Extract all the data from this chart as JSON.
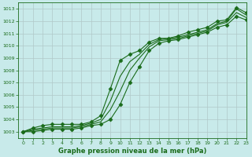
{
  "background_color": "#c8eaea",
  "grid_color": "#b0c8c8",
  "line_color": "#1a6b1a",
  "marker_color": "#1a6b1a",
  "title": "Graphe pression niveau de la mer (hPa)",
  "xlim": [
    -0.5,
    23
  ],
  "ylim": [
    1002.5,
    1013.5
  ],
  "yticks": [
    1003,
    1004,
    1005,
    1006,
    1007,
    1008,
    1009,
    1010,
    1011,
    1012,
    1013
  ],
  "xticks": [
    0,
    1,
    2,
    3,
    4,
    5,
    6,
    7,
    8,
    9,
    10,
    11,
    12,
    13,
    14,
    15,
    16,
    17,
    18,
    19,
    20,
    21,
    22,
    23
  ],
  "series": [
    {
      "x": [
        0,
        1,
        2,
        3,
        4,
        5,
        6,
        7,
        8,
        9,
        10,
        11,
        12,
        13,
        14,
        15,
        16,
        17,
        18,
        19,
        20,
        21,
        22,
        23
      ],
      "y": [
        1003.0,
        1003.3,
        1003.5,
        1003.6,
        1003.6,
        1003.6,
        1003.6,
        1003.8,
        1004.3,
        1006.5,
        1008.8,
        1009.3,
        1009.6,
        1010.3,
        1010.6,
        1010.6,
        1010.8,
        1011.1,
        1011.3,
        1011.5,
        1012.0,
        1012.1,
        1013.1,
        1012.7
      ],
      "marker": "D",
      "markersize": 2.5,
      "lw": 0.8
    },
    {
      "x": [
        0,
        1,
        2,
        3,
        4,
        5,
        6,
        7,
        8,
        9,
        10,
        11,
        12,
        13,
        14,
        15,
        16,
        17,
        18,
        19,
        20,
        21,
        22,
        23
      ],
      "y": [
        1003.0,
        1003.2,
        1003.3,
        1003.4,
        1003.4,
        1003.4,
        1003.5,
        1003.7,
        1004.0,
        1005.5,
        1007.5,
        1008.7,
        1009.3,
        1010.1,
        1010.5,
        1010.6,
        1010.7,
        1010.9,
        1011.1,
        1011.3,
        1011.8,
        1012.0,
        1013.0,
        1012.5
      ],
      "marker": null,
      "markersize": 0,
      "lw": 0.8
    },
    {
      "x": [
        0,
        1,
        2,
        3,
        4,
        5,
        6,
        7,
        8,
        9,
        10,
        11,
        12,
        13,
        14,
        15,
        16,
        17,
        18,
        19,
        20,
        21,
        22,
        23
      ],
      "y": [
        1003.0,
        1003.1,
        1003.2,
        1003.3,
        1003.3,
        1003.3,
        1003.4,
        1003.6,
        1003.8,
        1004.8,
        1006.3,
        1008.0,
        1009.0,
        1009.9,
        1010.4,
        1010.5,
        1010.6,
        1010.8,
        1011.0,
        1011.2,
        1011.7,
        1011.9,
        1012.7,
        1012.3
      ],
      "marker": null,
      "markersize": 0,
      "lw": 0.8
    },
    {
      "x": [
        0,
        1,
        2,
        3,
        4,
        5,
        6,
        7,
        8,
        9,
        10,
        11,
        12,
        13,
        14,
        15,
        16,
        17,
        18,
        19,
        20,
        21,
        22,
        23
      ],
      "y": [
        1003.0,
        1003.0,
        1003.1,
        1003.2,
        1003.2,
        1003.2,
        1003.3,
        1003.5,
        1003.6,
        1004.0,
        1005.2,
        1007.0,
        1008.3,
        1009.6,
        1010.2,
        1010.4,
        1010.5,
        1010.7,
        1010.9,
        1011.1,
        1011.5,
        1011.7,
        1012.4,
        1012.1
      ],
      "marker": "D",
      "markersize": 2.5,
      "lw": 0.8
    }
  ]
}
